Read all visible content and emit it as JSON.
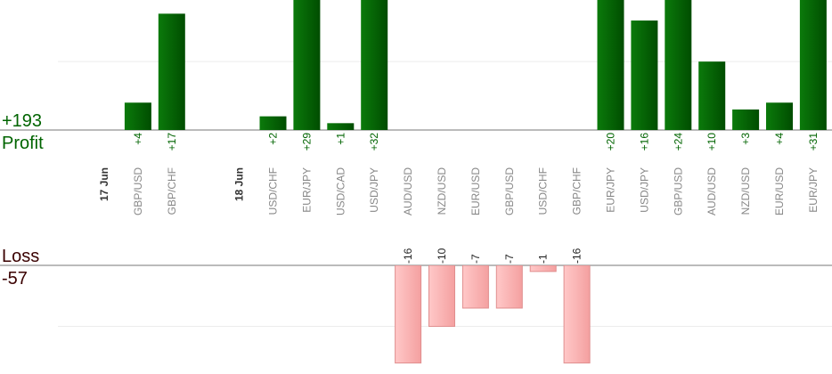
{
  "chart_data": {
    "type": "bar",
    "profit": {
      "label": "Profit",
      "total": 193,
      "total_label": "+193",
      "color": "#006400",
      "ylim": [
        0,
        19
      ],
      "yticks": [
        10
      ]
    },
    "loss": {
      "label": "Loss",
      "total": -57,
      "total_label": "-57",
      "color": "#ffb6b6",
      "ylim": [
        0,
        -17.8
      ],
      "yticks": [
        -10
      ]
    },
    "groups": [
      {
        "date": "17 Jun",
        "categories": [
          "GBP/USD",
          "GBP/CHF"
        ],
        "values": [
          4,
          17
        ],
        "value_labels": [
          "+4",
          "+17"
        ]
      },
      {
        "date": "18 Jun",
        "categories": [
          "USD/CHF",
          "EUR/JPY",
          "USD/CAD",
          "USD/JPY",
          "AUD/USD",
          "NZD/USD",
          "EUR/USD",
          "GBP/USD",
          "USD/CHF",
          "GBP/CHF",
          "EUR/JPY",
          "USD/JPY",
          "GBP/USD",
          "AUD/USD",
          "NZD/USD",
          "EUR/USD",
          "EUR/JPY"
        ],
        "values": [
          2,
          29,
          1,
          32,
          -16,
          -10,
          -7,
          -7,
          -1,
          -16,
          20,
          16,
          24,
          10,
          3,
          4,
          31
        ],
        "value_labels": [
          "+2",
          "+29",
          "+1",
          "+32",
          "-16",
          "-10",
          "-7",
          "-7",
          "-1",
          "-16",
          "+20",
          "+16",
          "+24",
          "+10",
          "+3",
          "+4",
          "+31"
        ]
      }
    ]
  }
}
